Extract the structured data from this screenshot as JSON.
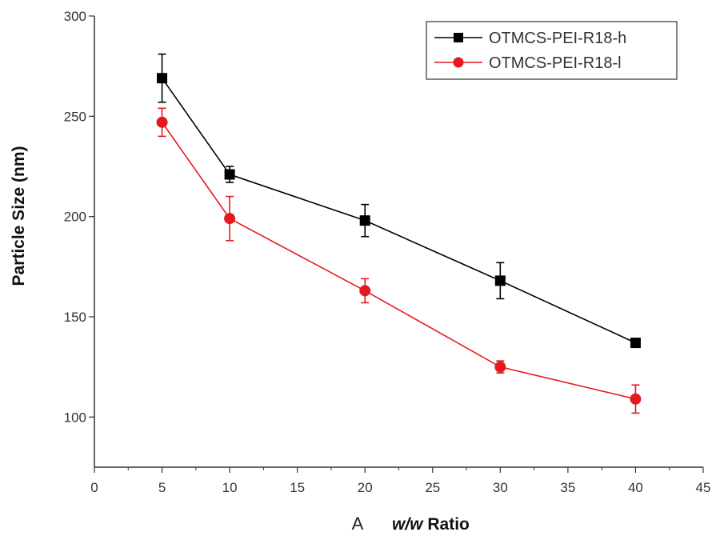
{
  "chart_data": {
    "type": "line",
    "panel_label": "A",
    "xlabel_italic": "w/w",
    "xlabel_rest": " Ratio",
    "ylabel": "Particle Size (nm)",
    "xlim": [
      0,
      45
    ],
    "ylim": [
      75,
      300
    ],
    "x_ticks": [
      0,
      5,
      10,
      15,
      20,
      25,
      30,
      35,
      40,
      45
    ],
    "y_ticks": [
      100,
      150,
      200,
      250,
      300
    ],
    "grid": false,
    "legend_position": "top-right",
    "series": [
      {
        "name": "OTMCS-PEI-R18-h",
        "color": "#000000",
        "marker": "square",
        "x": [
          5,
          10,
          20,
          30,
          40
        ],
        "y": [
          269,
          221,
          198,
          168,
          137
        ],
        "err": [
          12,
          4,
          8,
          9,
          2
        ]
      },
      {
        "name": "OTMCS-PEI-R18-l",
        "color": "#e41a1c",
        "marker": "circle",
        "x": [
          5,
          10,
          20,
          30,
          40
        ],
        "y": [
          247,
          199,
          163,
          125,
          109
        ],
        "err": [
          7,
          11,
          6,
          3,
          7
        ]
      }
    ]
  }
}
